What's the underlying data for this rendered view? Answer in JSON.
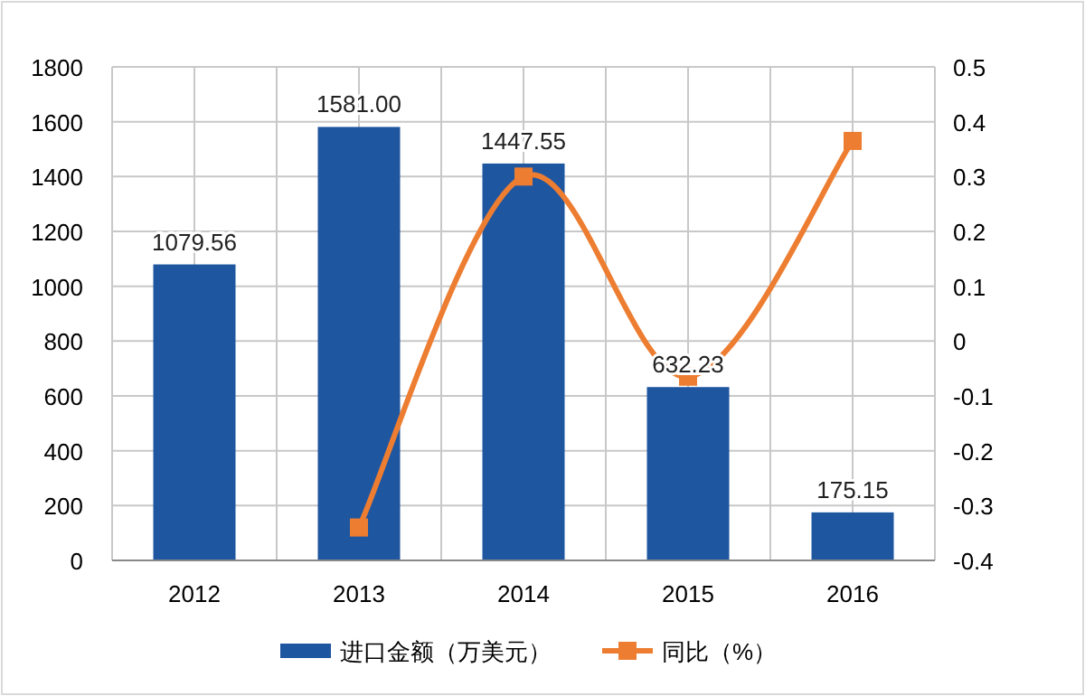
{
  "chart_data": {
    "type": "bar",
    "categories": [
      "2012",
      "2013",
      "2014",
      "2015",
      "2016"
    ],
    "series": [
      {
        "name": "进口金额（万美元）",
        "color": "#1f56a0",
        "values": [
          1079.56,
          1581.0,
          1447.55,
          632.23,
          175.15
        ],
        "value_labels": [
          "1079.56",
          "1581.00",
          "1447.55",
          "632.23",
          "175.15"
        ]
      },
      {
        "name": "同比（%）",
        "type": "line",
        "axis": "y2",
        "color": "#ed7d31",
        "marker": "square",
        "values": [
          null,
          -0.34,
          0.3,
          -0.065,
          0.365
        ]
      }
    ],
    "ylim": [
      0,
      1800
    ],
    "yticks": [
      0,
      200,
      400,
      600,
      800,
      1000,
      1200,
      1400,
      1600,
      1800
    ],
    "y2lim": [
      -0.4,
      0.5
    ],
    "y2ticks": [
      -0.4,
      -0.3,
      -0.2,
      -0.1,
      0,
      0.1,
      0.2,
      0.3,
      0.4,
      0.5
    ],
    "grid": true,
    "legend": "bottom"
  }
}
